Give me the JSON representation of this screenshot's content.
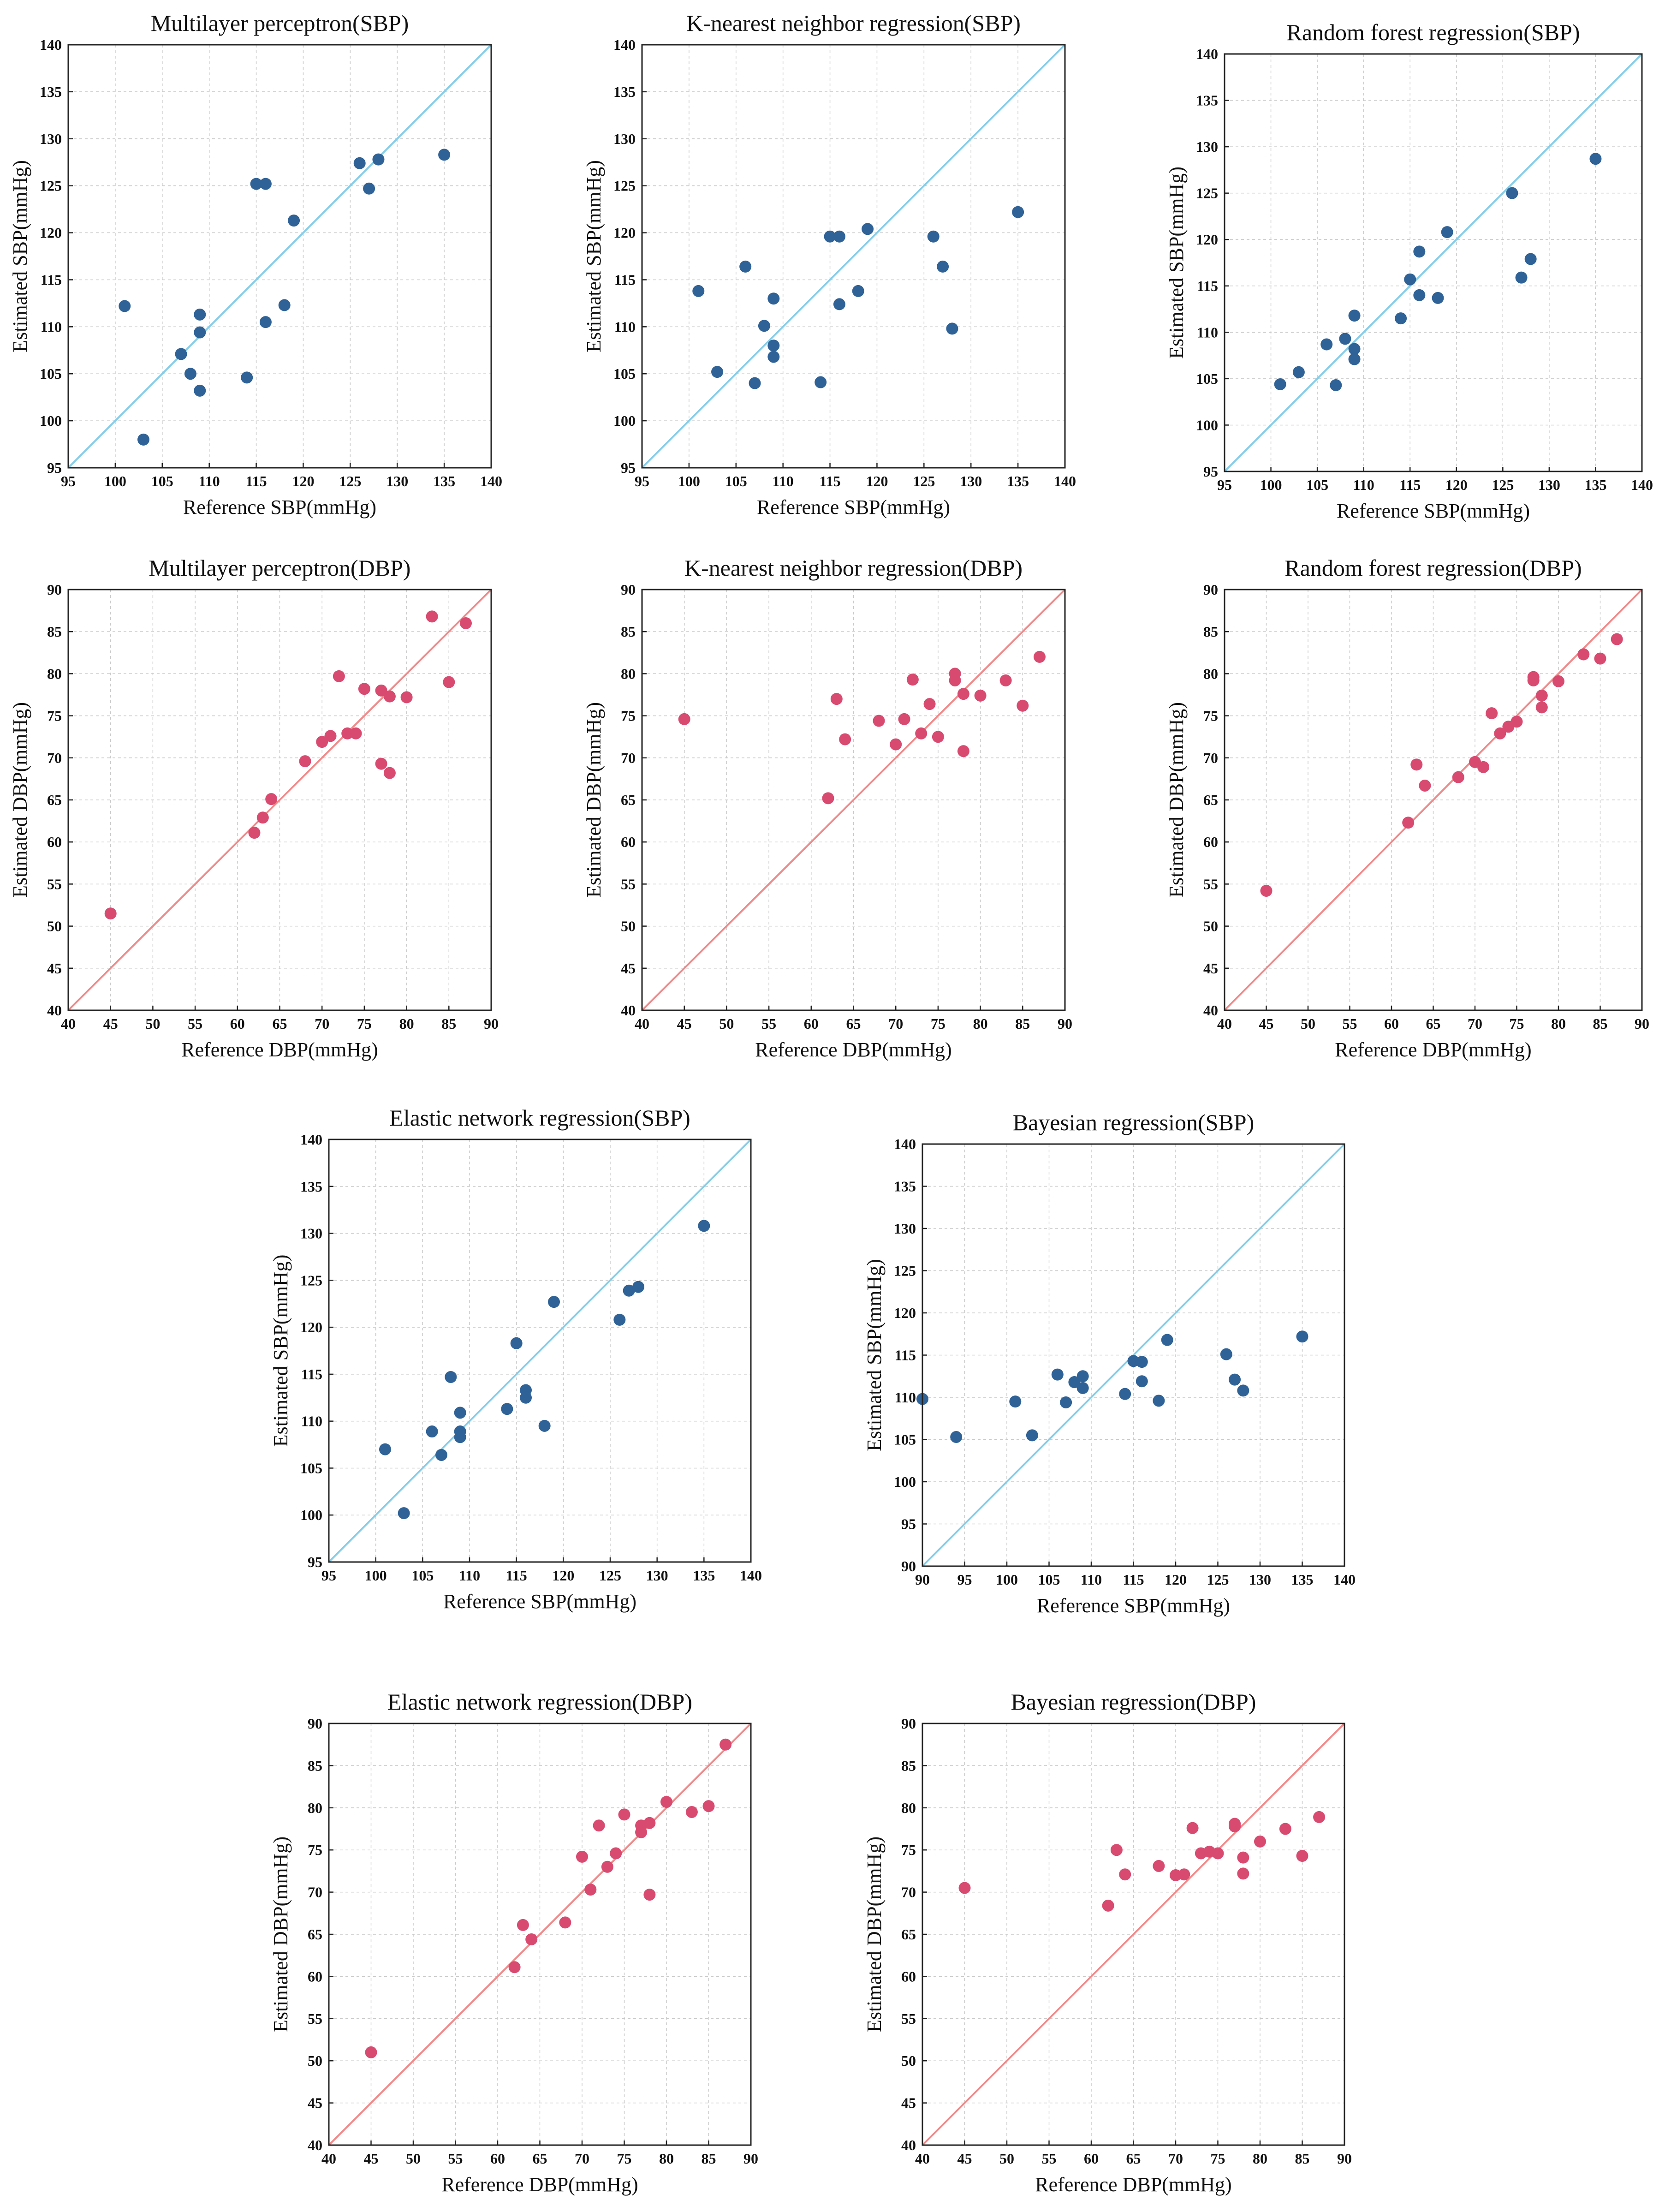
{
  "figure": {
    "description_none": ""
  },
  "colors": {
    "sbp_points": "#2f6297",
    "sbp_line": "#86cde8",
    "dbp_points": "#d94a70",
    "dbp_line": "#f08a8a"
  },
  "chart_data": [
    {
      "id": "mlp-sbp",
      "type": "scatter",
      "title": "Multilayer perceptron(SBP)",
      "xlabel": "Reference SBP(mmHg)",
      "ylabel": "Estimated SBP(mmHg)",
      "xlim": [
        95,
        140
      ],
      "ylim": [
        95,
        140
      ],
      "step": 5,
      "grid": true,
      "reference_line": "y = x",
      "color_scheme": "sbp",
      "points": [
        [
          101,
          112.2
        ],
        [
          103,
          98
        ],
        [
          107,
          107.1
        ],
        [
          108,
          105
        ],
        [
          109,
          109.4
        ],
        [
          109,
          111.3
        ],
        [
          109,
          103.2
        ],
        [
          114,
          104.6
        ],
        [
          115,
          125.2
        ],
        [
          116,
          125.2
        ],
        [
          116,
          110.5
        ],
        [
          118,
          112.3
        ],
        [
          119,
          121.3
        ],
        [
          126,
          127.4
        ],
        [
          127,
          124.7
        ],
        [
          128,
          127.8
        ],
        [
          135,
          128.3
        ]
      ]
    },
    {
      "id": "knn-sbp",
      "type": "scatter",
      "title": "K-nearest neighbor regression(SBP)",
      "xlabel": "Reference SBP(mmHg)",
      "ylabel": "Estimated SBP(mmHg)",
      "xlim": [
        95,
        140
      ],
      "ylim": [
        95,
        140
      ],
      "step": 5,
      "grid": true,
      "reference_line": "y = x",
      "color_scheme": "sbp",
      "points": [
        [
          101,
          113.8
        ],
        [
          103,
          105.2
        ],
        [
          106,
          116.4
        ],
        [
          107,
          104
        ],
        [
          108,
          110.1
        ],
        [
          109,
          113
        ],
        [
          109,
          108
        ],
        [
          109,
          106.8
        ],
        [
          114,
          104.1
        ],
        [
          115,
          119.6
        ],
        [
          116,
          119.6
        ],
        [
          116,
          112.4
        ],
        [
          118,
          113.8
        ],
        [
          119,
          120.4
        ],
        [
          126,
          119.6
        ],
        [
          127,
          116.4
        ],
        [
          128,
          109.8
        ],
        [
          135,
          122.2
        ]
      ]
    },
    {
      "id": "rf-sbp",
      "type": "scatter",
      "title": "Random forest regression(SBP)",
      "xlabel": "Reference SBP(mmHg)",
      "ylabel": "Estimated SBP(mmHg)",
      "xlim": [
        95,
        140
      ],
      "ylim": [
        95,
        140
      ],
      "step": 5,
      "grid": true,
      "reference_line": "y = x",
      "color_scheme": "sbp",
      "points": [
        [
          101,
          104.4
        ],
        [
          103,
          105.7
        ],
        [
          106,
          108.7
        ],
        [
          107,
          104.3
        ],
        [
          108,
          109.3
        ],
        [
          109,
          111.8
        ],
        [
          109,
          108.2
        ],
        [
          109,
          107.1
        ],
        [
          114,
          111.5
        ],
        [
          115,
          115.7
        ],
        [
          116,
          118.7
        ],
        [
          116,
          114
        ],
        [
          118,
          113.7
        ],
        [
          119,
          120.8
        ],
        [
          126,
          125
        ],
        [
          127,
          115.9
        ],
        [
          128,
          117.9
        ],
        [
          135,
          128.7
        ]
      ]
    },
    {
      "id": "mlp-dbp",
      "type": "scatter",
      "title": "Multilayer perceptron(DBP)",
      "xlabel": "Reference DBP(mmHg)",
      "ylabel": "Estimated DBP(mmHg)",
      "xlim": [
        40,
        90
      ],
      "ylim": [
        40,
        90
      ],
      "step": 5,
      "grid": true,
      "reference_line": "y = x",
      "color_scheme": "dbp",
      "points": [
        [
          45,
          51.5
        ],
        [
          62,
          61.1
        ],
        [
          63,
          62.9
        ],
        [
          64,
          65.1
        ],
        [
          68,
          69.6
        ],
        [
          70,
          71.9
        ],
        [
          71,
          72.6
        ],
        [
          72,
          79.7
        ],
        [
          73,
          72.9
        ],
        [
          74,
          72.9
        ],
        [
          75,
          78.2
        ],
        [
          77,
          78
        ],
        [
          77,
          69.3
        ],
        [
          78,
          77.3
        ],
        [
          78,
          68.2
        ],
        [
          80,
          77.2
        ],
        [
          83,
          86.8
        ],
        [
          85,
          79
        ],
        [
          87,
          86
        ]
      ]
    },
    {
      "id": "knn-dbp",
      "type": "scatter",
      "title": "K-nearest neighbor regression(DBP)",
      "xlabel": "Reference DBP(mmHg)",
      "ylabel": "Estimated DBP(mmHg)",
      "xlim": [
        40,
        90
      ],
      "ylim": [
        40,
        90
      ],
      "step": 5,
      "grid": true,
      "reference_line": "y = x",
      "color_scheme": "dbp",
      "points": [
        [
          45,
          74.6
        ],
        [
          62,
          65.2
        ],
        [
          63,
          77
        ],
        [
          64,
          72.2
        ],
        [
          68,
          74.4
        ],
        [
          70,
          71.6
        ],
        [
          71,
          74.6
        ],
        [
          72,
          79.3
        ],
        [
          73,
          72.9
        ],
        [
          74,
          76.4
        ],
        [
          75,
          72.5
        ],
        [
          77,
          80
        ],
        [
          77,
          79.2
        ],
        [
          78,
          77.6
        ],
        [
          78,
          70.8
        ],
        [
          80,
          77.4
        ],
        [
          83,
          79.2
        ],
        [
          85,
          76.2
        ],
        [
          87,
          82
        ]
      ]
    },
    {
      "id": "rf-dbp",
      "type": "scatter",
      "title": "Random forest regression(DBP)",
      "xlabel": "Reference DBP(mmHg)",
      "ylabel": "Estimated DBP(mmHg)",
      "xlim": [
        40,
        90
      ],
      "ylim": [
        40,
        90
      ],
      "step": 5,
      "grid": true,
      "reference_line": "y = x",
      "color_scheme": "dbp",
      "points": [
        [
          45,
          54.2
        ],
        [
          62,
          62.3
        ],
        [
          63,
          69.2
        ],
        [
          64,
          66.7
        ],
        [
          68,
          67.7
        ],
        [
          70,
          69.5
        ],
        [
          71,
          68.9
        ],
        [
          72,
          75.3
        ],
        [
          73,
          72.9
        ],
        [
          74,
          73.7
        ],
        [
          75,
          74.3
        ],
        [
          77,
          79.6
        ],
        [
          77,
          79.2
        ],
        [
          78,
          77.4
        ],
        [
          78,
          76
        ],
        [
          80,
          79.1
        ],
        [
          83,
          82.3
        ],
        [
          85,
          81.8
        ],
        [
          87,
          84.1
        ]
      ]
    },
    {
      "id": "enet-sbp",
      "type": "scatter",
      "title": "Elastic network regression(SBP)",
      "xlabel": "Reference SBP(mmHg)",
      "ylabel": "Estimated SBP(mmHg)",
      "xlim": [
        95,
        140
      ],
      "ylim": [
        95,
        140
      ],
      "step": 5,
      "grid": true,
      "reference_line": "y = x",
      "color_scheme": "sbp",
      "points": [
        [
          101,
          107
        ],
        [
          103,
          100.2
        ],
        [
          106,
          108.9
        ],
        [
          107,
          106.4
        ],
        [
          108,
          114.7
        ],
        [
          109,
          110.9
        ],
        [
          109,
          108.9
        ],
        [
          109,
          108.3
        ],
        [
          114,
          111.3
        ],
        [
          115,
          118.3
        ],
        [
          116,
          113.3
        ],
        [
          116,
          112.5
        ],
        [
          118,
          109.5
        ],
        [
          119,
          122.7
        ],
        [
          126,
          120.8
        ],
        [
          127,
          123.9
        ],
        [
          128,
          124.3
        ],
        [
          135,
          130.8
        ]
      ]
    },
    {
      "id": "bayes-sbp",
      "type": "scatter",
      "title": "Bayesian regression(SBP)",
      "xlabel": "Reference SBP(mmHg)",
      "ylabel": "Estimated SBP(mmHg)",
      "xlim": [
        90,
        140
      ],
      "ylim": [
        90,
        140
      ],
      "step": 5,
      "grid": true,
      "reference_line": "y = x",
      "color_scheme": "sbp",
      "points": [
        [
          90,
          109.8
        ],
        [
          94,
          105.3
        ],
        [
          101,
          109.5
        ],
        [
          103,
          105.5
        ],
        [
          106,
          112.7
        ],
        [
          107,
          109.4
        ],
        [
          108,
          111.8
        ],
        [
          109,
          112.5
        ],
        [
          109,
          111.1
        ],
        [
          114,
          110.4
        ],
        [
          115,
          114.3
        ],
        [
          116,
          114.2
        ],
        [
          116,
          111.9
        ],
        [
          118,
          109.6
        ],
        [
          119,
          116.8
        ],
        [
          126,
          115.1
        ],
        [
          127,
          112.1
        ],
        [
          128,
          110.8
        ],
        [
          135,
          117.2
        ]
      ]
    },
    {
      "id": "enet-dbp",
      "type": "scatter",
      "title": "Elastic network regression(DBP)",
      "xlabel": "Reference DBP(mmHg)",
      "ylabel": "Estimated DBP(mmHg)",
      "xlim": [
        40,
        90
      ],
      "ylim": [
        40,
        90
      ],
      "step": 5,
      "grid": true,
      "reference_line": "y = x",
      "color_scheme": "dbp",
      "points": [
        [
          45,
          51
        ],
        [
          62,
          61.1
        ],
        [
          63,
          66.1
        ],
        [
          64,
          64.4
        ],
        [
          68,
          66.4
        ],
        [
          70,
          74.2
        ],
        [
          71,
          70.3
        ],
        [
          72,
          77.9
        ],
        [
          73,
          73
        ],
        [
          74,
          74.6
        ],
        [
          75,
          79.2
        ],
        [
          77,
          77.9
        ],
        [
          77,
          77.1
        ],
        [
          78,
          78.2
        ],
        [
          78,
          69.7
        ],
        [
          80,
          80.7
        ],
        [
          83,
          79.5
        ],
        [
          85,
          80.2
        ],
        [
          87,
          87.5
        ]
      ]
    },
    {
      "id": "bayes-dbp",
      "type": "scatter",
      "title": "Bayesian regression(DBP)",
      "xlabel": "Reference DBP(mmHg)",
      "ylabel": "Estimated DBP(mmHg)",
      "xlim": [
        40,
        90
      ],
      "ylim": [
        40,
        90
      ],
      "step": 5,
      "grid": true,
      "reference_line": "y = x",
      "color_scheme": "dbp",
      "points": [
        [
          45,
          70.5
        ],
        [
          62,
          68.4
        ],
        [
          63,
          75
        ],
        [
          64,
          72.1
        ],
        [
          68,
          73.1
        ],
        [
          70,
          72
        ],
        [
          71,
          72.1
        ],
        [
          72,
          77.6
        ],
        [
          73,
          74.6
        ],
        [
          74,
          74.8
        ],
        [
          75,
          74.6
        ],
        [
          77,
          78.1
        ],
        [
          77,
          77.8
        ],
        [
          78,
          74.1
        ],
        [
          78,
          72.2
        ],
        [
          80,
          76
        ],
        [
          83,
          77.5
        ],
        [
          85,
          74.3
        ],
        [
          87,
          78.9
        ]
      ]
    }
  ]
}
